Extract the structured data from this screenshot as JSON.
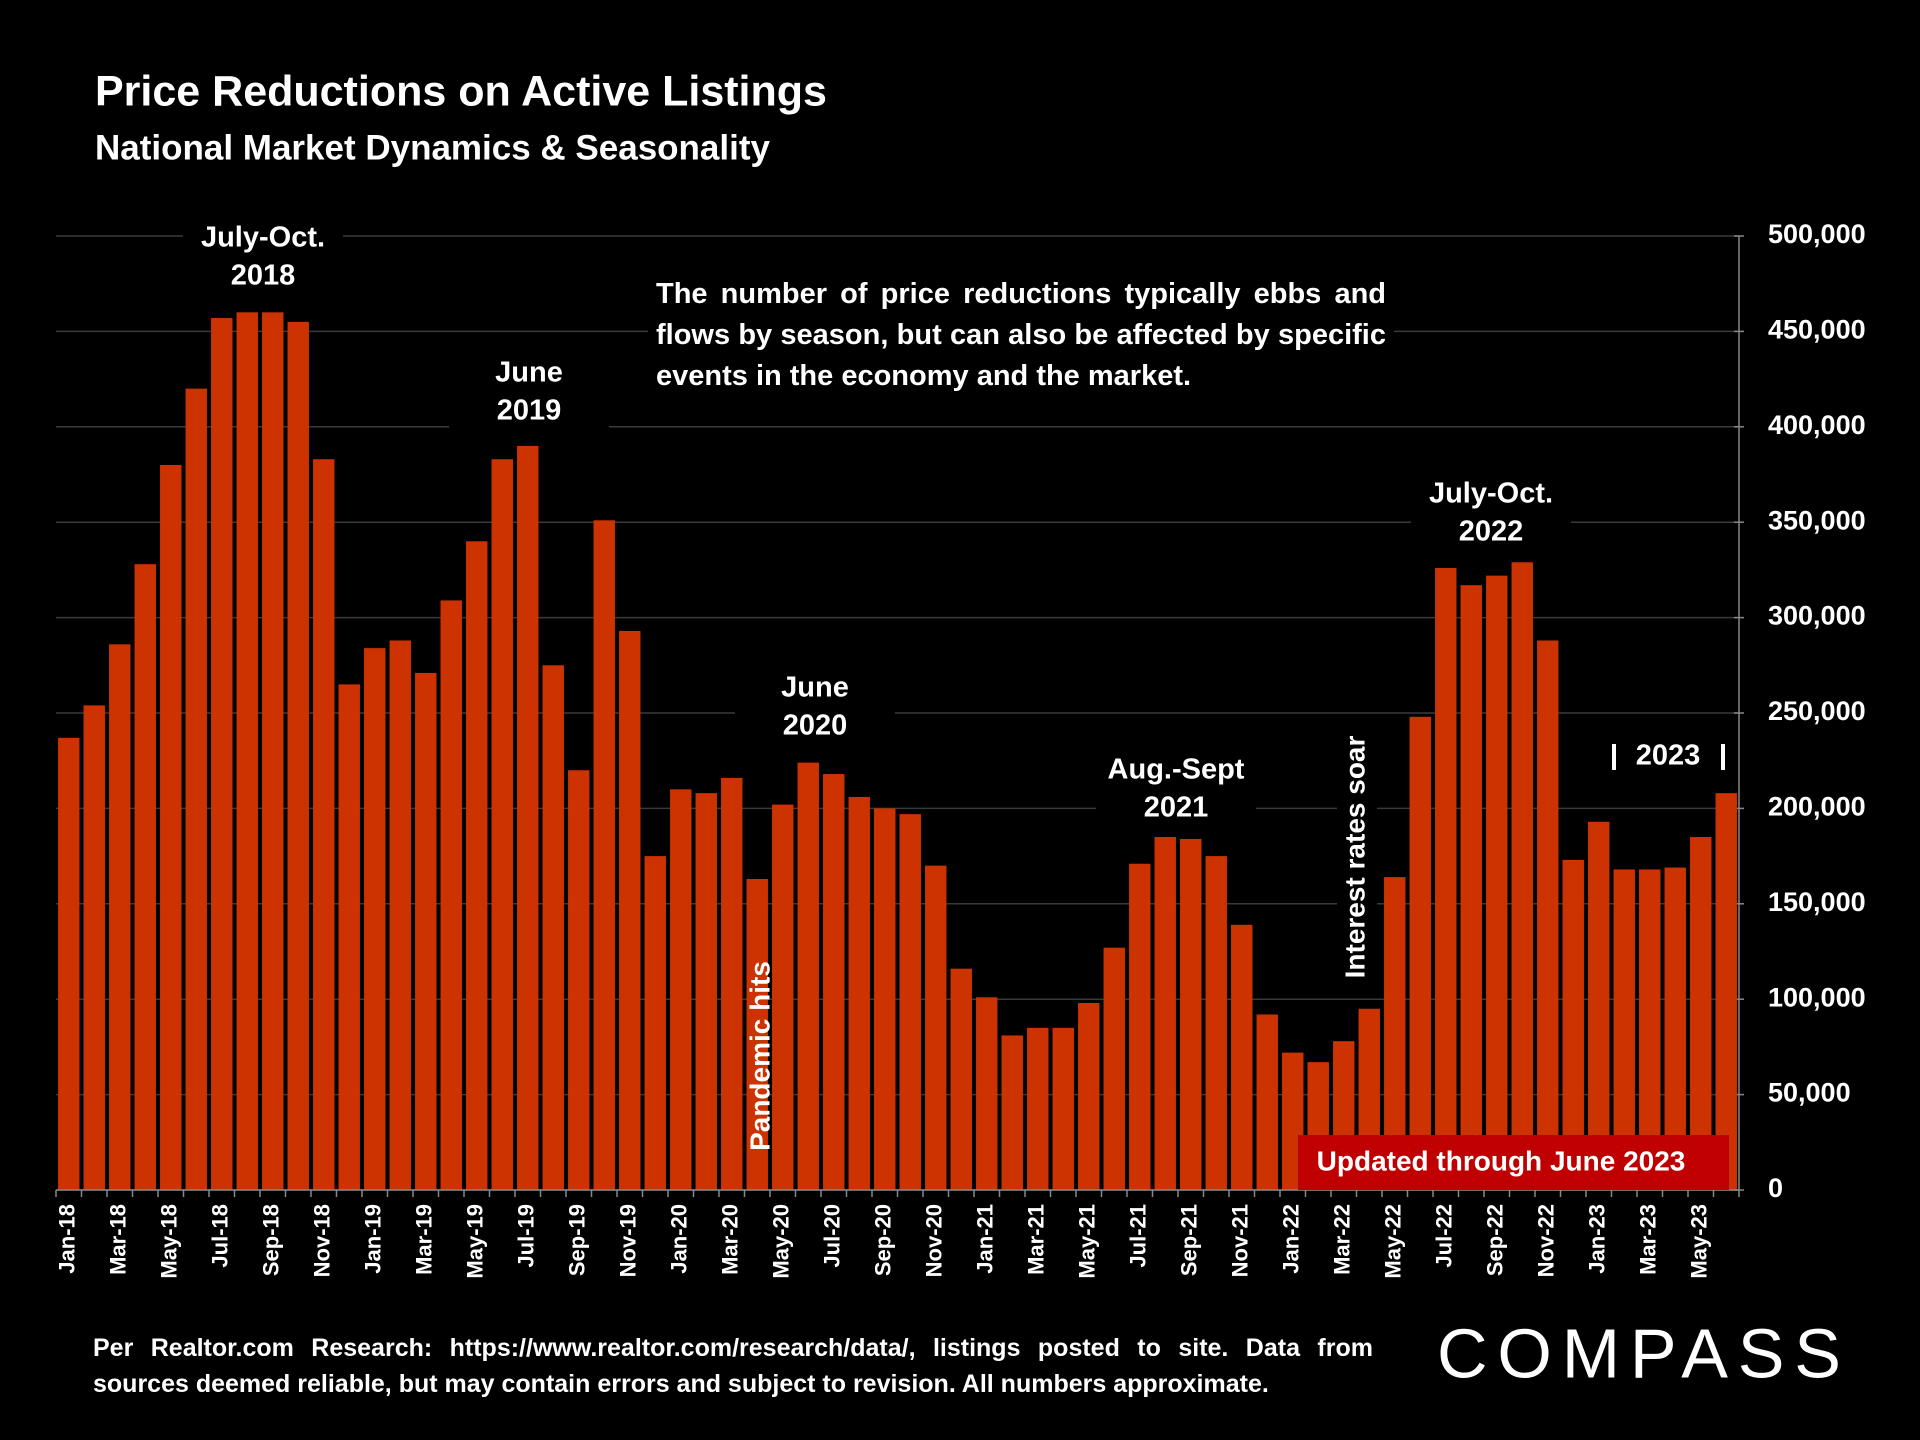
{
  "chart_data": {
    "type": "bar",
    "title": "Price Reductions on Active Listings",
    "subtitle": "National Market Dynamics & Seasonality",
    "note": "The number of price reductions typically ebbs and flows by season, but can also be affected by specific events in the economy and the market.",
    "categories": [
      "Jan-18",
      null,
      "Mar-18",
      null,
      "May-18",
      null,
      "Jul-18",
      null,
      "Sep-18",
      null,
      "Nov-18",
      null,
      "Jan-19",
      null,
      "Mar-19",
      null,
      "May-19",
      null,
      "Jul-19",
      null,
      "Sep-19",
      null,
      "Nov-19",
      null,
      "Jan-20",
      null,
      "Mar-20",
      null,
      "May-20",
      null,
      "Jul-20",
      null,
      "Sep-20",
      null,
      "Nov-20",
      null,
      "Jan-21",
      null,
      "Mar-21",
      null,
      "May-21",
      null,
      "Jul-21",
      null,
      "Sep-21",
      null,
      "Nov-21",
      null,
      "Jan-22",
      null,
      "Mar-22",
      null,
      "May-22",
      null,
      "Jul-22",
      null,
      "Sep-22",
      null,
      "Nov-22",
      null,
      "Jan-23",
      null,
      "Mar-23",
      null,
      "May-23",
      null
    ],
    "values": [
      237000,
      254000,
      286000,
      328000,
      380000,
      420000,
      457000,
      460000,
      460000,
      455000,
      383000,
      265000,
      284000,
      288000,
      271000,
      309000,
      340000,
      383000,
      390000,
      275000,
      220000,
      351000,
      293000,
      175000,
      210000,
      208000,
      216000,
      163000,
      202000,
      224000,
      218000,
      206000,
      200000,
      197000,
      170000,
      116000,
      101000,
      81000,
      85000,
      85000,
      98000,
      127000,
      171000,
      185000,
      184000,
      175000,
      139000,
      92000,
      72000,
      67000,
      78000,
      95000,
      164000,
      248000,
      326000,
      317000,
      322000,
      329000,
      288000,
      173000,
      193000,
      168000,
      168000,
      169000,
      185000,
      208000
    ],
    "color": "#cc3300",
    "ylim": [
      0,
      500000
    ],
    "yticks": [
      0,
      {
        "value": 50000,
        "label": "50,000"
      },
      {
        "value": 100000,
        "label": "100,000"
      },
      {
        "value": 150000,
        "label": "150,000"
      },
      {
        "value": 200000,
        "label": "200,000"
      },
      {
        "value": 250000,
        "label": "250,000"
      },
      {
        "value": 300000,
        "label": "300,000"
      },
      {
        "value": 350000,
        "label": "350,000"
      },
      {
        "value": 400000,
        "label": "400,000"
      },
      {
        "value": 450000,
        "label": "450,000"
      },
      {
        "value": 500000,
        "label": "500,000"
      }
    ],
    "grid": true,
    "annotations": [
      [
        "July-Oct.",
        "2018"
      ],
      [
        "June",
        "2019"
      ],
      [
        "June",
        "2020"
      ],
      [
        "Aug.-Sept",
        "2021"
      ],
      [
        "July-Oct.",
        "2022"
      ]
    ],
    "event_labels": [
      "Pandemic hits",
      "Interest rates soar"
    ],
    "year_label": "2023",
    "update_note": "Updated through June 2023"
  },
  "source": "Per Realtor.com Research:  https://www.realtor.com/research/data/, listings posted to site. Data from sources deemed reliable, but may contain errors and subject to revision. All numbers approximate.",
  "logo": "COMPASS"
}
